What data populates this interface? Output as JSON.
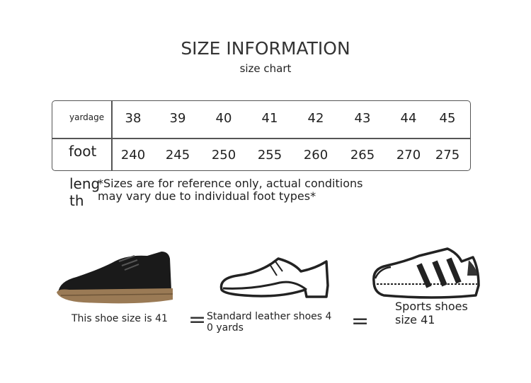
{
  "title": "SIZE INFORMATION",
  "subtitle": "size chart",
  "table": {
    "row_labels": [
      "yardage",
      "foot",
      "length"
    ],
    "sizes": [
      "38",
      "39",
      "40",
      "41",
      "42",
      "43",
      "44",
      "45"
    ],
    "foot_lengths": [
      "240",
      "245",
      "250",
      "255",
      "260",
      "265",
      "270",
      "275"
    ]
  },
  "note": {
    "line1": "*Sizes are for reference only, actual conditions",
    "line2": "may vary due to individual foot types*"
  },
  "length_label": {
    "line1": "leng",
    "line2": "th"
  },
  "comparison": {
    "caption1": "This shoe size is 41",
    "equals": "=",
    "caption2_line1": "Standard leather shoes 4",
    "caption2_line2": "0 yards",
    "caption3_line1": "Sports shoes",
    "caption3_line2": "size 41"
  },
  "colors": {
    "leather": "#1a1a1a",
    "sole": "#9a7a55",
    "outline": "#222222"
  }
}
